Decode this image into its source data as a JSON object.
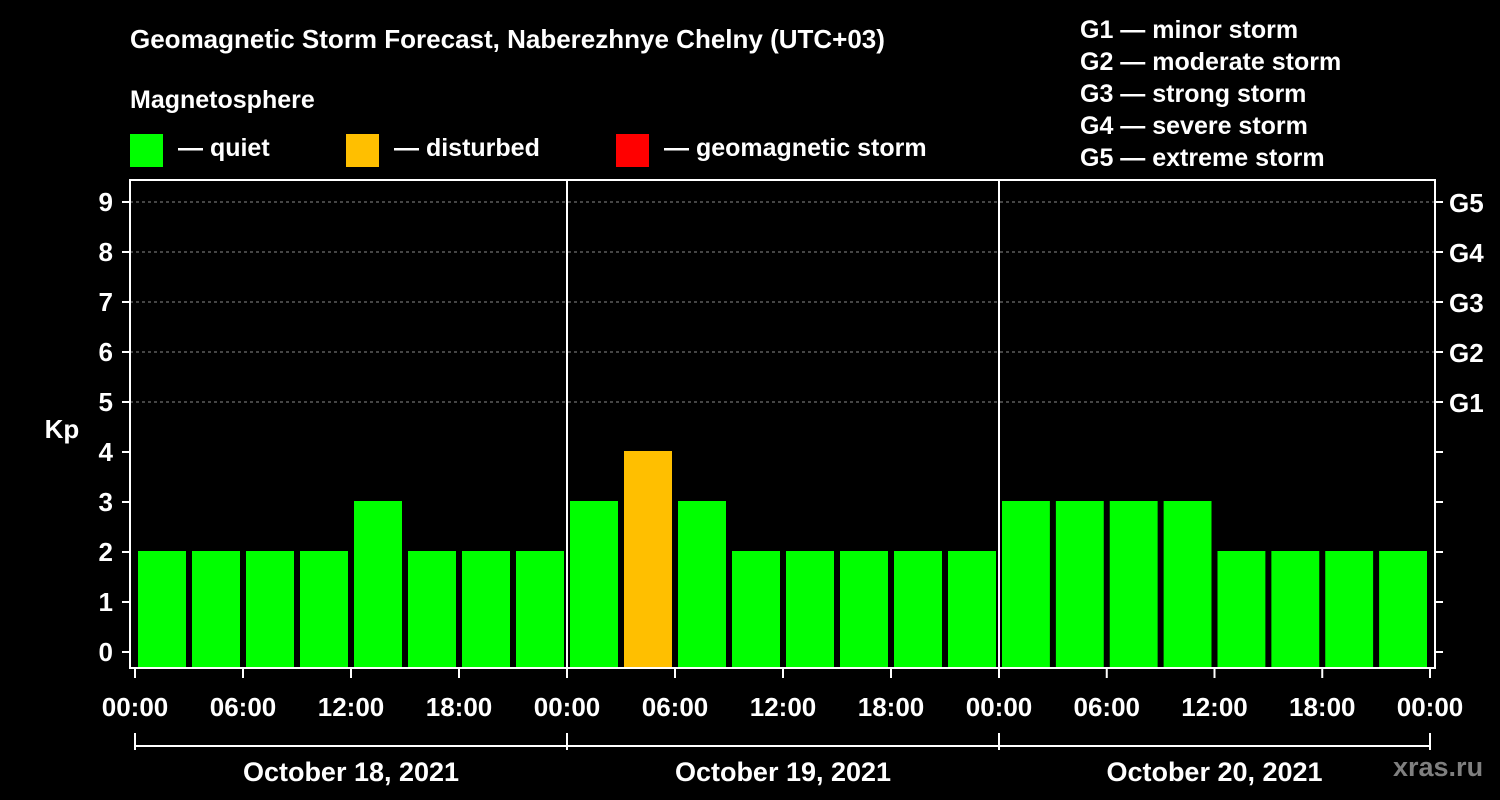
{
  "title": "Geomagnetic Storm Forecast, Naberezhnye Chelny (UTC+03)",
  "legend": {
    "heading": "Magnetosphere",
    "items": [
      {
        "label": "— quiet",
        "color": "#00ff00"
      },
      {
        "label": "— disturbed",
        "color": "#ffbf00"
      },
      {
        "label": "— geomagnetic storm",
        "color": "#ff0000"
      }
    ]
  },
  "storm_scale": [
    "G1 — minor storm",
    "G2 — moderate storm",
    "G3 — strong storm",
    "G4 — severe storm",
    "G5 — extreme storm"
  ],
  "watermark": "xras.ru",
  "chart_data": {
    "type": "bar",
    "ylabel": "Kp",
    "ylim": [
      0,
      9
    ],
    "yticks": [
      0,
      1,
      2,
      3,
      4,
      5,
      6,
      7,
      8,
      9
    ],
    "right_ticks": [
      {
        "kp": 5,
        "label": "G1"
      },
      {
        "kp": 6,
        "label": "G2"
      },
      {
        "kp": 7,
        "label": "G3"
      },
      {
        "kp": 8,
        "label": "G4"
      },
      {
        "kp": 9,
        "label": "G5"
      }
    ],
    "grid": "dashed horizontal at Kp 5–9",
    "x_tick_labels": [
      "00:00",
      "06:00",
      "12:00",
      "18:00",
      "00:00",
      "06:00",
      "12:00",
      "18:00",
      "00:00",
      "06:00",
      "12:00",
      "18:00",
      "00:00"
    ],
    "days": [
      "October 18, 2021",
      "October 19, 2021",
      "October 20, 2021"
    ],
    "interval_hours": 3,
    "values": [
      2,
      2,
      2,
      2,
      3,
      2,
      2,
      2,
      3,
      4,
      3,
      2,
      2,
      2,
      2,
      2,
      3,
      3,
      3,
      3,
      2,
      2,
      2,
      2
    ],
    "status": [
      "quiet",
      "quiet",
      "quiet",
      "quiet",
      "quiet",
      "quiet",
      "quiet",
      "quiet",
      "quiet",
      "disturbed",
      "quiet",
      "quiet",
      "quiet",
      "quiet",
      "quiet",
      "quiet",
      "quiet",
      "quiet",
      "quiet",
      "quiet",
      "quiet",
      "quiet",
      "quiet",
      "quiet"
    ],
    "status_colors": {
      "quiet": "#00ff00",
      "disturbed": "#ffbf00",
      "storm": "#ff0000"
    }
  }
}
